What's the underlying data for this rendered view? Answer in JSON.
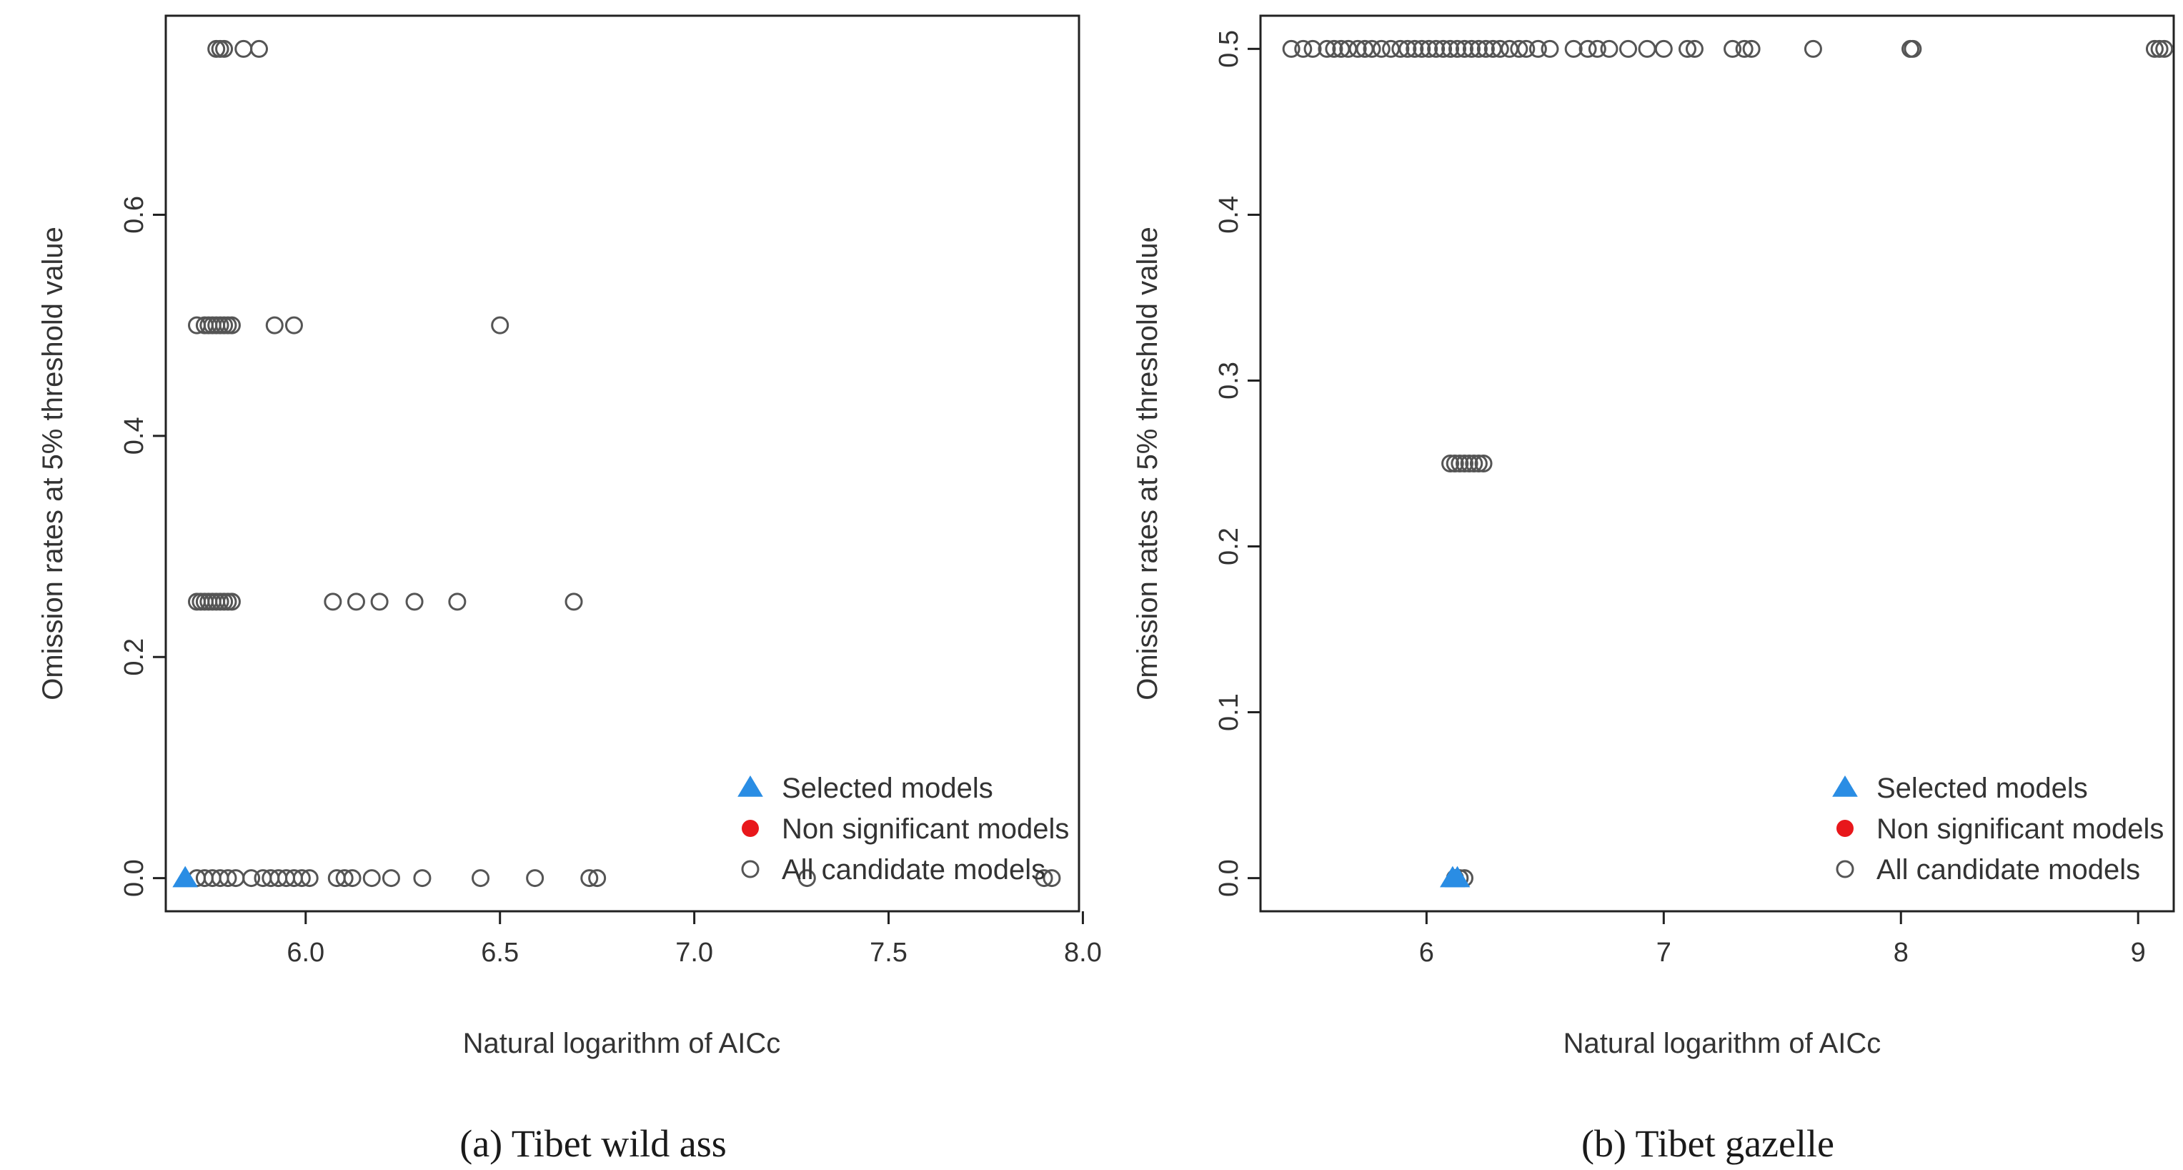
{
  "colors": {
    "selected": "#2a8de4",
    "non_significant": "#e8171b",
    "candidate": "#555555",
    "axis": "#222222"
  },
  "chart_data": [
    {
      "type": "scatter",
      "caption": "(a) Tibet wild ass",
      "xlabel": "Natural logarithm of AICc",
      "ylabel": "Omission rates at 5% threshold value",
      "xlim": [
        5.64,
        7.99
      ],
      "ylim": [
        -0.03,
        0.78
      ],
      "xticks": [
        6.0,
        6.5,
        7.0,
        7.5,
        8.0
      ],
      "xtick_labels": [
        "6.0",
        "6.5",
        "7.0",
        "7.5",
        "8.0"
      ],
      "yticks": [
        0.0,
        0.2,
        0.4,
        0.6
      ],
      "ytick_labels": [
        "0.0",
        "0.2",
        "0.4",
        "0.6"
      ],
      "legend": {
        "position": "bottom-right",
        "entries": [
          {
            "label": "Selected models",
            "marker": "triangle",
            "color_key": "selected"
          },
          {
            "label": "Non significant models",
            "marker": "filled-circle",
            "color_key": "non_significant"
          },
          {
            "label": "All candidate models",
            "marker": "open-circle",
            "color_key": "candidate"
          }
        ]
      },
      "series": [
        {
          "name": "All candidate models",
          "marker": "open-circle",
          "points": [
            [
              5.77,
              0.75
            ],
            [
              5.78,
              0.75
            ],
            [
              5.79,
              0.75
            ],
            [
              5.84,
              0.75
            ],
            [
              5.88,
              0.75
            ],
            [
              5.72,
              0.5
            ],
            [
              5.74,
              0.5
            ],
            [
              5.75,
              0.5
            ],
            [
              5.76,
              0.5
            ],
            [
              5.77,
              0.5
            ],
            [
              5.78,
              0.5
            ],
            [
              5.79,
              0.5
            ],
            [
              5.8,
              0.5
            ],
            [
              5.81,
              0.5
            ],
            [
              5.92,
              0.5
            ],
            [
              5.97,
              0.5
            ],
            [
              6.5,
              0.5
            ],
            [
              5.72,
              0.25
            ],
            [
              5.73,
              0.25
            ],
            [
              5.74,
              0.25
            ],
            [
              5.75,
              0.25
            ],
            [
              5.76,
              0.25
            ],
            [
              5.77,
              0.25
            ],
            [
              5.78,
              0.25
            ],
            [
              5.79,
              0.25
            ],
            [
              5.8,
              0.25
            ],
            [
              5.81,
              0.25
            ],
            [
              6.07,
              0.25
            ],
            [
              6.13,
              0.25
            ],
            [
              6.19,
              0.25
            ],
            [
              6.28,
              0.25
            ],
            [
              6.39,
              0.25
            ],
            [
              6.69,
              0.25
            ],
            [
              5.72,
              0.0
            ],
            [
              5.74,
              0.0
            ],
            [
              5.76,
              0.0
            ],
            [
              5.78,
              0.0
            ],
            [
              5.8,
              0.0
            ],
            [
              5.82,
              0.0
            ],
            [
              5.86,
              0.0
            ],
            [
              5.89,
              0.0
            ],
            [
              5.91,
              0.0
            ],
            [
              5.93,
              0.0
            ],
            [
              5.95,
              0.0
            ],
            [
              5.97,
              0.0
            ],
            [
              5.99,
              0.0
            ],
            [
              6.01,
              0.0
            ],
            [
              6.08,
              0.0
            ],
            [
              6.1,
              0.0
            ],
            [
              6.12,
              0.0
            ],
            [
              6.17,
              0.0
            ],
            [
              6.22,
              0.0
            ],
            [
              6.3,
              0.0
            ],
            [
              6.45,
              0.0
            ],
            [
              6.59,
              0.0
            ],
            [
              6.73,
              0.0
            ],
            [
              6.75,
              0.0
            ],
            [
              7.29,
              0.0
            ],
            [
              7.9,
              0.0
            ],
            [
              7.92,
              0.0
            ]
          ]
        },
        {
          "name": "Selected models",
          "marker": "triangle",
          "points": [
            [
              5.69,
              0.0
            ]
          ]
        }
      ]
    },
    {
      "type": "scatter",
      "caption": "(b) Tibet gazelle",
      "xlabel": "Natural logarithm of AICc",
      "ylabel": "Omission rates at 5% threshold value",
      "xlim": [
        5.3,
        9.15
      ],
      "ylim": [
        -0.02,
        0.52
      ],
      "xticks": [
        6,
        7,
        8,
        9
      ],
      "xtick_labels": [
        "6",
        "7",
        "8",
        "9"
      ],
      "yticks": [
        0.0,
        0.1,
        0.2,
        0.3,
        0.4,
        0.5
      ],
      "ytick_labels": [
        "0.0",
        "0.1",
        "0.2",
        "0.3",
        "0.4",
        "0.5"
      ],
      "legend": {
        "position": "bottom-right",
        "entries": [
          {
            "label": "Selected models",
            "marker": "triangle",
            "color_key": "selected"
          },
          {
            "label": "Non significant models",
            "marker": "filled-circle",
            "color_key": "non_significant"
          },
          {
            "label": "All candidate models",
            "marker": "open-circle",
            "color_key": "candidate"
          }
        ]
      },
      "series": [
        {
          "name": "All candidate models",
          "marker": "open-circle",
          "points": [
            [
              5.43,
              0.5
            ],
            [
              5.48,
              0.5
            ],
            [
              5.52,
              0.5
            ],
            [
              5.58,
              0.5
            ],
            [
              5.61,
              0.5
            ],
            [
              5.64,
              0.5
            ],
            [
              5.67,
              0.5
            ],
            [
              5.71,
              0.5
            ],
            [
              5.74,
              0.5
            ],
            [
              5.77,
              0.5
            ],
            [
              5.81,
              0.5
            ],
            [
              5.85,
              0.5
            ],
            [
              5.89,
              0.5
            ],
            [
              5.92,
              0.5
            ],
            [
              5.95,
              0.5
            ],
            [
              5.98,
              0.5
            ],
            [
              6.01,
              0.5
            ],
            [
              6.04,
              0.5
            ],
            [
              6.07,
              0.5
            ],
            [
              6.1,
              0.5
            ],
            [
              6.13,
              0.5
            ],
            [
              6.16,
              0.5
            ],
            [
              6.19,
              0.5
            ],
            [
              6.22,
              0.5
            ],
            [
              6.25,
              0.5
            ],
            [
              6.28,
              0.5
            ],
            [
              6.31,
              0.5
            ],
            [
              6.35,
              0.5
            ],
            [
              6.39,
              0.5
            ],
            [
              6.42,
              0.5
            ],
            [
              6.47,
              0.5
            ],
            [
              6.52,
              0.5
            ],
            [
              6.62,
              0.5
            ],
            [
              6.68,
              0.5
            ],
            [
              6.72,
              0.5
            ],
            [
              6.77,
              0.5
            ],
            [
              6.85,
              0.5
            ],
            [
              6.93,
              0.5
            ],
            [
              7.0,
              0.5
            ],
            [
              7.1,
              0.5
            ],
            [
              7.13,
              0.5
            ],
            [
              7.29,
              0.5
            ],
            [
              7.34,
              0.5
            ],
            [
              7.37,
              0.5
            ],
            [
              7.63,
              0.5
            ],
            [
              8.04,
              0.5
            ],
            [
              8.05,
              0.5
            ],
            [
              9.07,
              0.5
            ],
            [
              9.09,
              0.5
            ],
            [
              9.11,
              0.5
            ],
            [
              6.1,
              0.25
            ],
            [
              6.12,
              0.25
            ],
            [
              6.14,
              0.25
            ],
            [
              6.16,
              0.25
            ],
            [
              6.18,
              0.25
            ],
            [
              6.2,
              0.25
            ],
            [
              6.22,
              0.25
            ],
            [
              6.24,
              0.25
            ],
            [
              6.12,
              0.0
            ],
            [
              6.14,
              0.0
            ],
            [
              6.16,
              0.0
            ]
          ]
        },
        {
          "name": "Selected models",
          "marker": "triangle",
          "points": [
            [
              6.11,
              0.0
            ],
            [
              6.13,
              0.0
            ]
          ]
        }
      ]
    }
  ]
}
